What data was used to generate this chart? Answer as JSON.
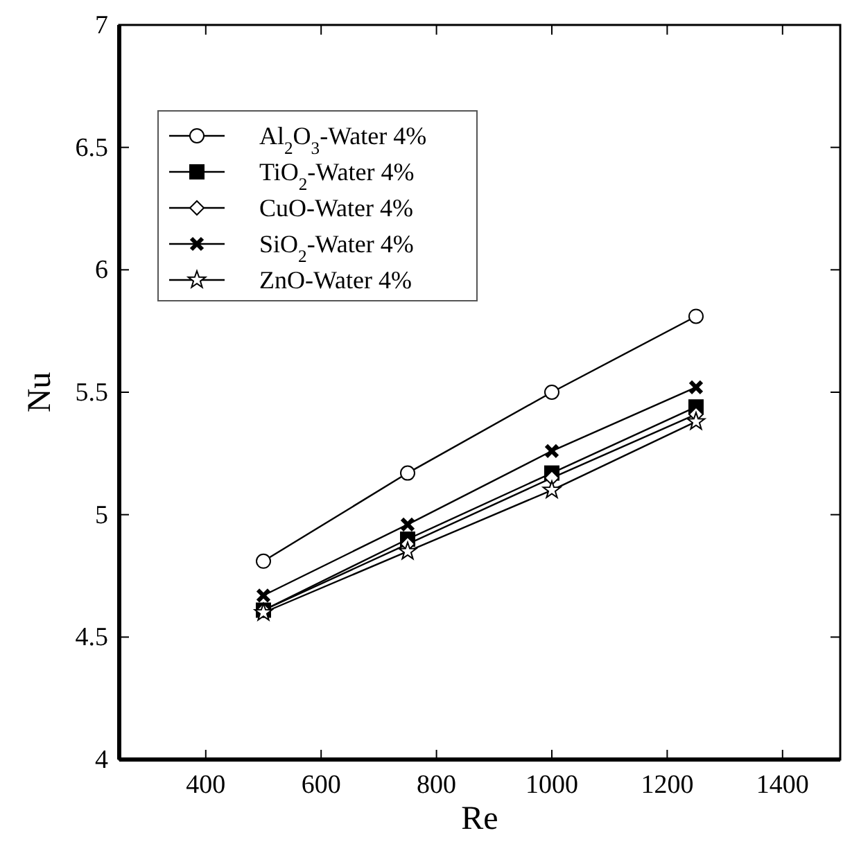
{
  "chart_data": {
    "type": "line",
    "xlabel": "Re",
    "ylabel": "Nu",
    "x": [
      500,
      750,
      1000,
      1250
    ],
    "xlim": [
      250,
      1500
    ],
    "xticks": [
      400,
      600,
      800,
      1000,
      1200,
      1400
    ],
    "ylim": [
      4,
      7
    ],
    "yticks": [
      4,
      4.5,
      5,
      5.5,
      6,
      6.5,
      7
    ],
    "legend": "top left",
    "grid": false,
    "line_style": "solid",
    "series": [
      {
        "name": "Al$_{2}$O$_{3}$-Water 4%",
        "color": "#000000",
        "marker": "circle",
        "values": [
          4.81,
          5.17,
          5.5,
          5.81
        ]
      },
      {
        "name": "TiO$_{2}$-Water 4%",
        "color": "#000000",
        "marker": "square",
        "values": [
          4.61,
          4.9,
          5.17,
          5.44
        ]
      },
      {
        "name": "CuO-Water 4%",
        "color": "#000000",
        "marker": "diamond",
        "values": [
          4.61,
          4.88,
          5.15,
          5.41
        ]
      },
      {
        "name": "SiO$_{2}$-Water 4%",
        "color": "#000000",
        "marker": "cross",
        "values": [
          4.67,
          4.96,
          5.26,
          5.52
        ]
      },
      {
        "name": "ZnO-Water 4%",
        "color": "#000000",
        "marker": "star",
        "values": [
          4.6,
          4.85,
          5.1,
          5.38
        ]
      }
    ]
  }
}
